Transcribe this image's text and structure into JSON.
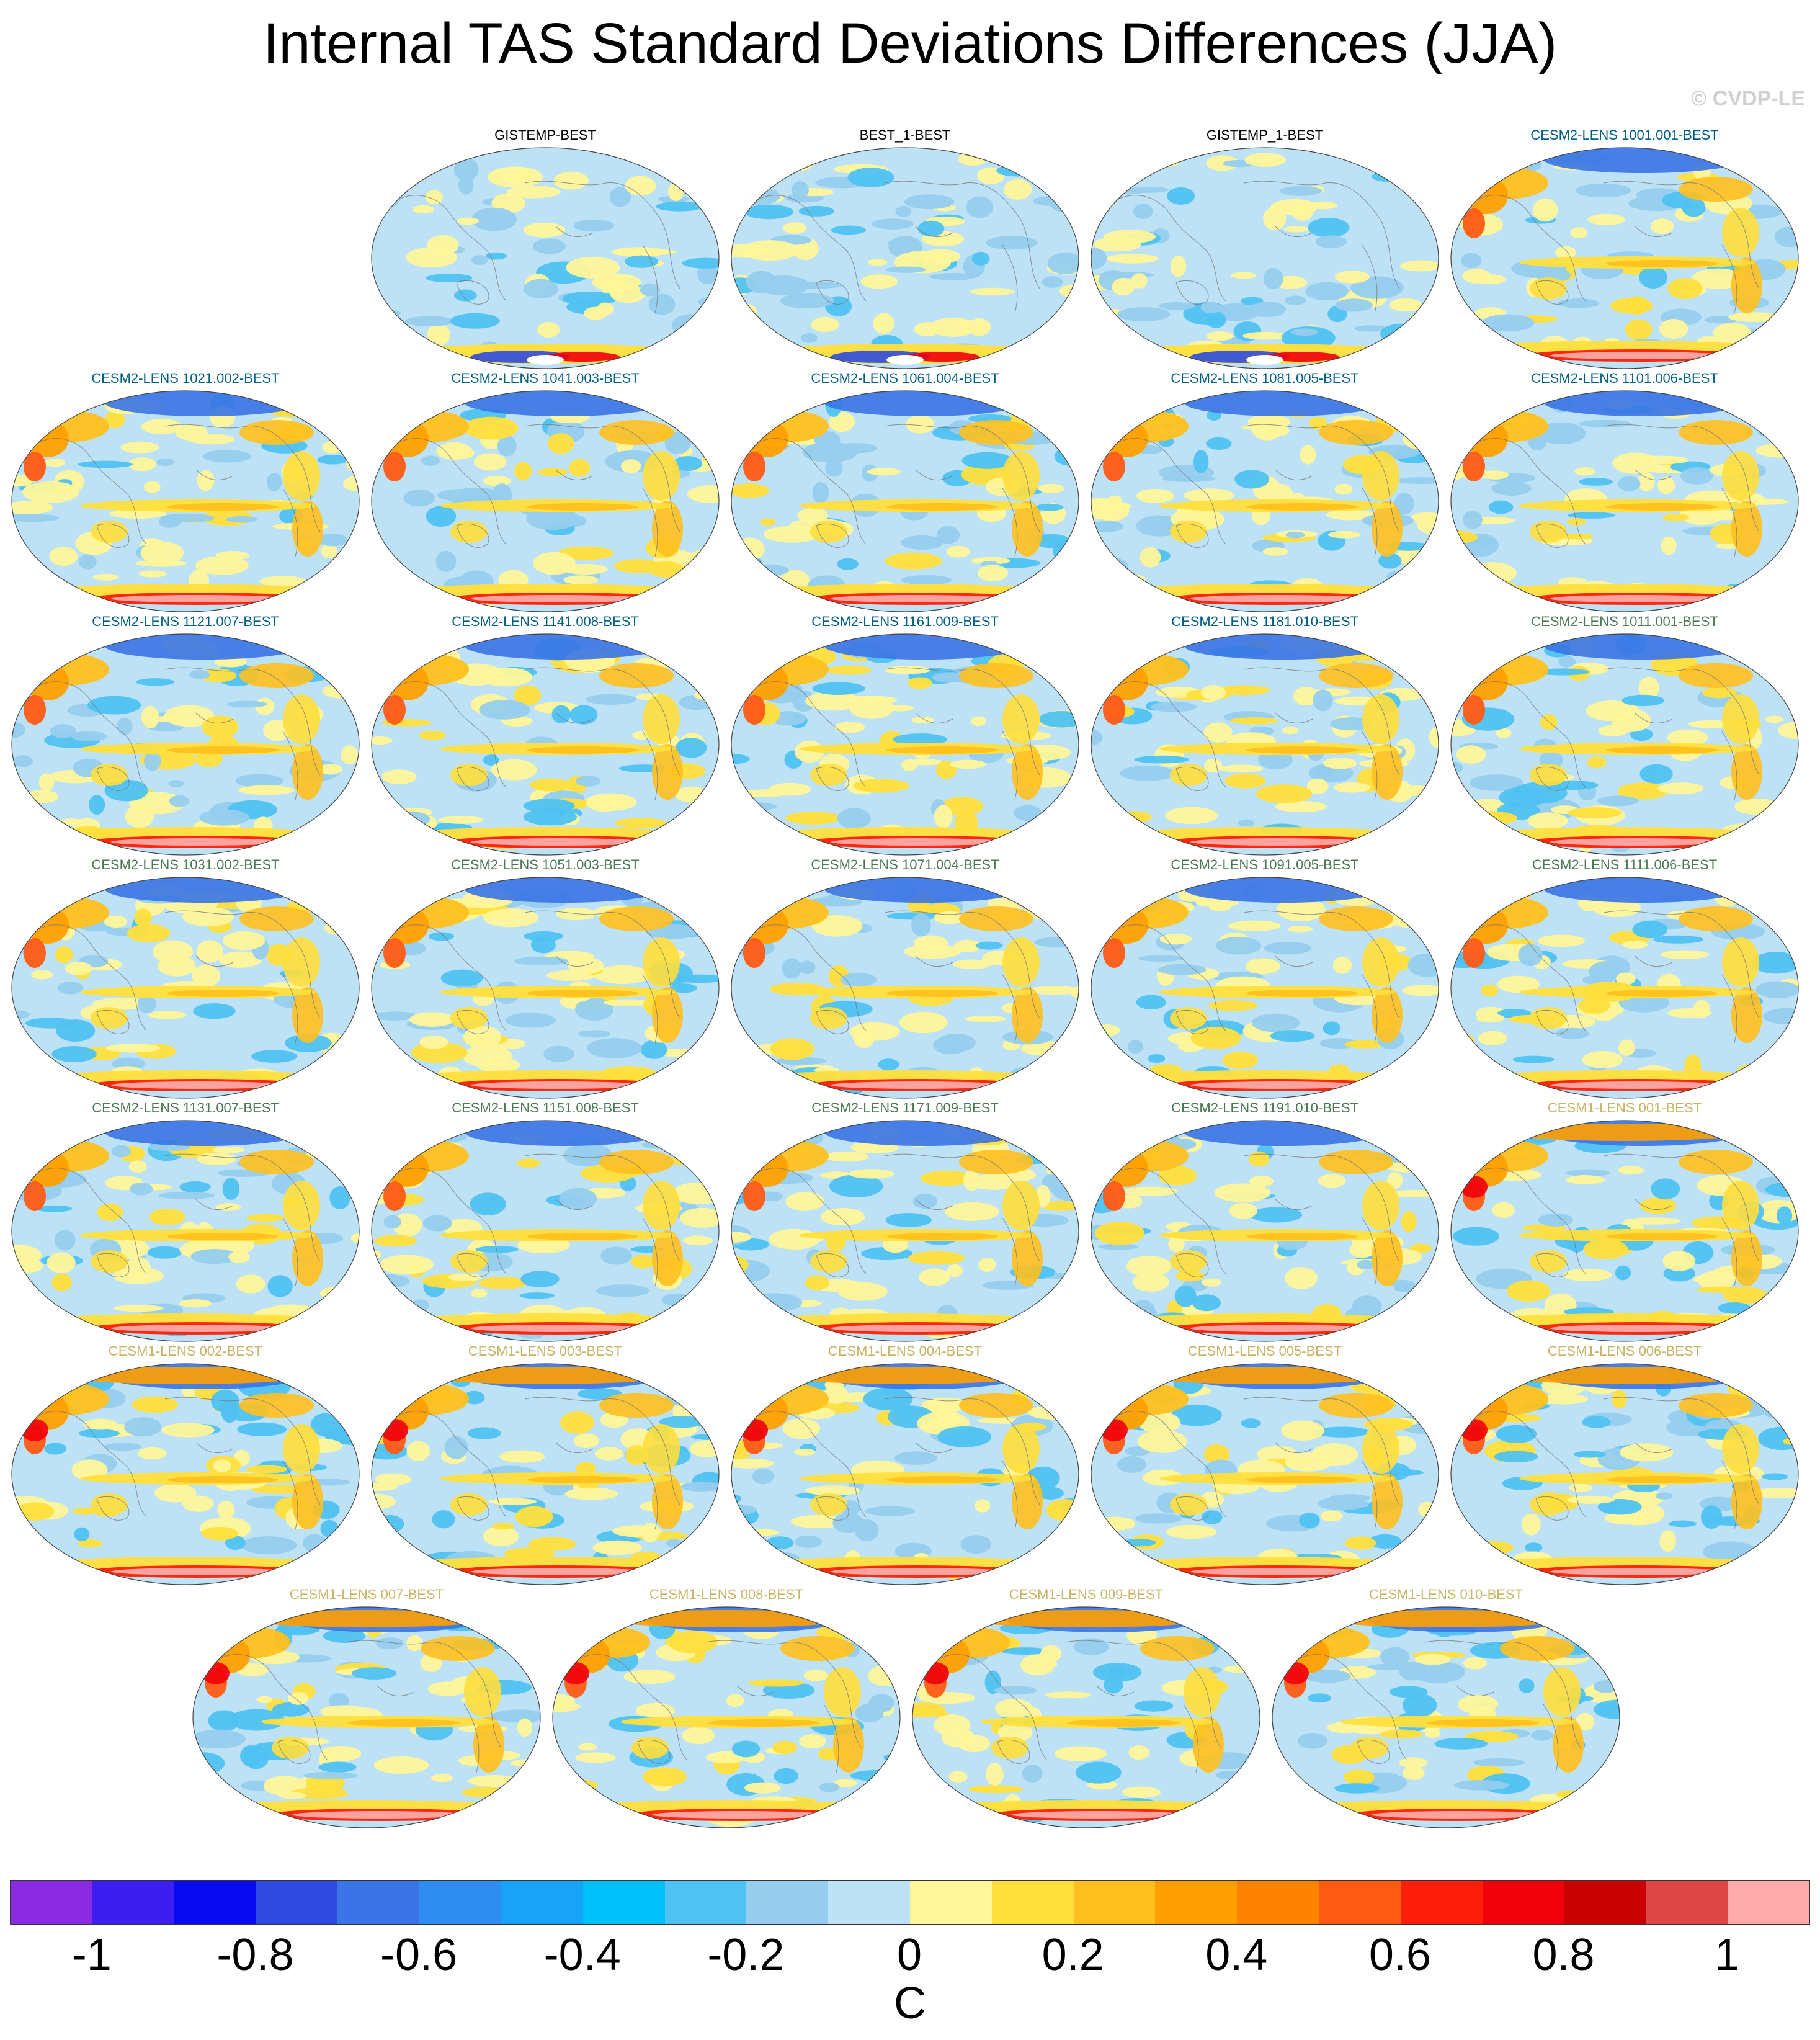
{
  "title": "Internal TAS Standard Deviations Differences (JJA)",
  "copyright": "© CVDP-LE",
  "label_colors": {
    "obs": "#000000",
    "cesm2_a": "#005f86",
    "cesm2_b": "#4a7a52",
    "cesm1": "#c8b466"
  },
  "panels": [
    {
      "label": "GISTEMP-BEST",
      "group": "obs",
      "pattern": "obs"
    },
    {
      "label": "BEST_1-BEST",
      "group": "obs",
      "pattern": "obs"
    },
    {
      "label": "GISTEMP_1-BEST",
      "group": "obs",
      "pattern": "obs"
    },
    {
      "label": "CESM2-LENS 1001.001-BEST",
      "group": "cesm2_a",
      "pattern": "model"
    },
    {
      "label": "CESM2-LENS 1021.002-BEST",
      "group": "cesm2_a",
      "pattern": "model"
    },
    {
      "label": "CESM2-LENS 1041.003-BEST",
      "group": "cesm2_a",
      "pattern": "model"
    },
    {
      "label": "CESM2-LENS 1061.004-BEST",
      "group": "cesm2_a",
      "pattern": "model"
    },
    {
      "label": "CESM2-LENS 1081.005-BEST",
      "group": "cesm2_a",
      "pattern": "model"
    },
    {
      "label": "CESM2-LENS 1101.006-BEST",
      "group": "cesm2_a",
      "pattern": "model"
    },
    {
      "label": "CESM2-LENS 1121.007-BEST",
      "group": "cesm2_a",
      "pattern": "model"
    },
    {
      "label": "CESM2-LENS 1141.008-BEST",
      "group": "cesm2_a",
      "pattern": "model"
    },
    {
      "label": "CESM2-LENS 1161.009-BEST",
      "group": "cesm2_a",
      "pattern": "model"
    },
    {
      "label": "CESM2-LENS 1181.010-BEST",
      "group": "cesm2_a",
      "pattern": "model"
    },
    {
      "label": "CESM2-LENS 1011.001-BEST",
      "group": "cesm2_b",
      "pattern": "model"
    },
    {
      "label": "CESM2-LENS 1031.002-BEST",
      "group": "cesm2_b",
      "pattern": "model"
    },
    {
      "label": "CESM2-LENS 1051.003-BEST",
      "group": "cesm2_b",
      "pattern": "model"
    },
    {
      "label": "CESM2-LENS 1071.004-BEST",
      "group": "cesm2_b",
      "pattern": "model"
    },
    {
      "label": "CESM2-LENS 1091.005-BEST",
      "group": "cesm2_b",
      "pattern": "model"
    },
    {
      "label": "CESM2-LENS 1111.006-BEST",
      "group": "cesm2_b",
      "pattern": "model"
    },
    {
      "label": "CESM2-LENS 1131.007-BEST",
      "group": "cesm2_b",
      "pattern": "model"
    },
    {
      "label": "CESM2-LENS 1151.008-BEST",
      "group": "cesm2_b",
      "pattern": "model"
    },
    {
      "label": "CESM2-LENS 1171.009-BEST",
      "group": "cesm2_b",
      "pattern": "model"
    },
    {
      "label": "CESM2-LENS 1191.010-BEST",
      "group": "cesm2_b",
      "pattern": "model"
    },
    {
      "label": "CESM1-LENS 001-BEST",
      "group": "cesm1",
      "pattern": "cesm1"
    },
    {
      "label": "CESM1-LENS 002-BEST",
      "group": "cesm1",
      "pattern": "cesm1"
    },
    {
      "label": "CESM1-LENS 003-BEST",
      "group": "cesm1",
      "pattern": "cesm1"
    },
    {
      "label": "CESM1-LENS 004-BEST",
      "group": "cesm1",
      "pattern": "cesm1"
    },
    {
      "label": "CESM1-LENS 005-BEST",
      "group": "cesm1",
      "pattern": "cesm1"
    },
    {
      "label": "CESM1-LENS 006-BEST",
      "group": "cesm1",
      "pattern": "cesm1"
    },
    {
      "label": "CESM1-LENS 007-BEST",
      "group": "cesm1",
      "pattern": "cesm1"
    },
    {
      "label": "CESM1-LENS 008-BEST",
      "group": "cesm1",
      "pattern": "cesm1"
    },
    {
      "label": "CESM1-LENS 009-BEST",
      "group": "cesm1",
      "pattern": "cesm1"
    },
    {
      "label": "CESM1-LENS 010-BEST",
      "group": "cesm1",
      "pattern": "cesm1"
    }
  ],
  "colorbar": {
    "colors": [
      "#8a2be2",
      "#3c1ef0",
      "#0a0af0",
      "#2f4ae0",
      "#3a74e6",
      "#2f8cf0",
      "#18a2f8",
      "#00c0fa",
      "#4fc2f2",
      "#96cdee",
      "#bde2f6",
      "#fff59a",
      "#ffdf3c",
      "#ffc01e",
      "#ffa000",
      "#ff8200",
      "#ff5a14",
      "#ff1e0a",
      "#f0000a",
      "#c80000",
      "#dc4646",
      "#ffaaaa"
    ],
    "ticks": [
      "-1",
      "-0.8",
      "-0.6",
      "-0.4",
      "-0.2",
      "0",
      "0.2",
      "0.4",
      "0.6",
      "0.8",
      "1"
    ],
    "unit": "C"
  }
}
